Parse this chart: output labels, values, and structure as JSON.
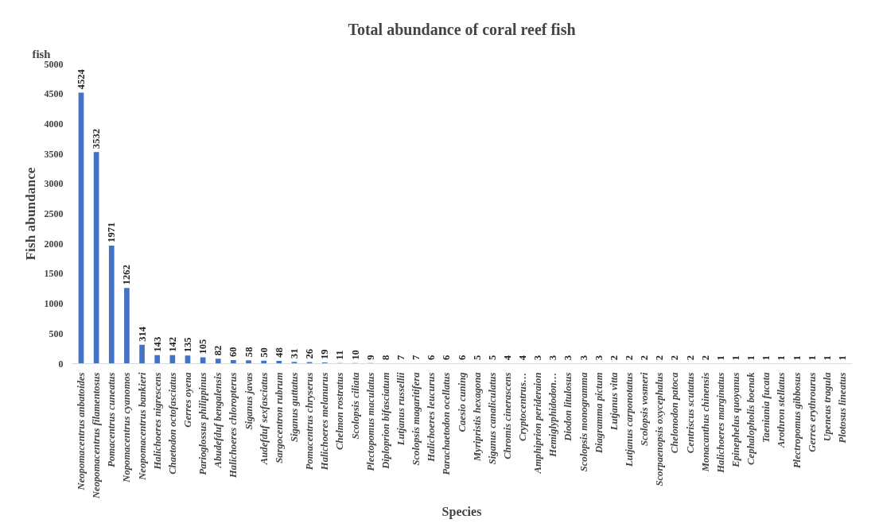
{
  "chart_data": {
    "type": "bar",
    "title": "Total abundance of coral reef fish",
    "xlabel": "Species",
    "ylabel": "Fish abundance",
    "annotations": [
      "fish"
    ],
    "categories": [
      "Neopomacentrus anbatoides",
      "Neopomacentrus filamentosus",
      "Pomacentrus cuneatus",
      "Nopomacentrus cyanomos",
      "Neopomacentrus bankieri",
      "Halichoeres nigrescens",
      "Chaetodon octofasciatus",
      "Gerres oyena",
      "Parioglossus philippinus",
      "Abudefduf bengalensis",
      "Halichoeres chloropterus",
      "Siganus javas",
      "Audefduf sexfasciatus",
      "Sargocentron rubrum",
      "Siganus guttatus",
      "Pomacentrus chryserus",
      "Halichoeres melanurus",
      "Chelmon rostratus",
      "Scolopsis ciliata",
      "Plectopomus maculatus",
      "Diploprion bifasciatum",
      "Lutjanus russellii",
      "Scolopsis magaritifera",
      "Halichoeres leucurus",
      "Parachaetodon ocellatus",
      "Caesio cuning",
      "Myripristis hexagona",
      "Siganus canaliculatus",
      "Chromis cinerascens",
      "Cryptocentrus…",
      "Amphiprion perideraion",
      "Hemiglyphidodon…",
      "Diodon litulosus",
      "Scolopsis monogramma",
      "Diagramma pictum",
      "Lutjanus vitta",
      "Lutjanus carponotatus",
      "Scolopsis vosmeri",
      "Scorpaenopsis oxycephalus",
      "Chelonodon patoca",
      "Centriscus scutatus",
      "Monacanthus chinensis",
      "Halichoeres marginatus",
      "Epinephelus quoyanus",
      "Cephalopholis boenak",
      "Taeniania fucata",
      "Arothron stellatus",
      "Plectropomus gibbosus",
      "Gerres erythrourus",
      "Upeneus tragula",
      "Plotosus lineatus"
    ],
    "values": [
      4524,
      3532,
      1971,
      1262,
      314,
      143,
      142,
      135,
      105,
      82,
      60,
      58,
      50,
      48,
      31,
      26,
      19,
      11,
      10,
      9,
      8,
      7,
      7,
      6,
      6,
      6,
      5,
      5,
      4,
      4,
      3,
      3,
      3,
      3,
      3,
      2,
      2,
      2,
      2,
      2,
      2,
      2,
      1,
      1,
      1,
      1,
      1,
      1,
      1,
      1,
      1
    ],
    "color": "#4472c4",
    "data_labels": true,
    "grid": false,
    "ylim": [
      0,
      5000
    ],
    "yticks": [
      0,
      500,
      1000,
      1500,
      2000,
      2500,
      3000,
      3500,
      4000,
      4500,
      5000
    ]
  }
}
